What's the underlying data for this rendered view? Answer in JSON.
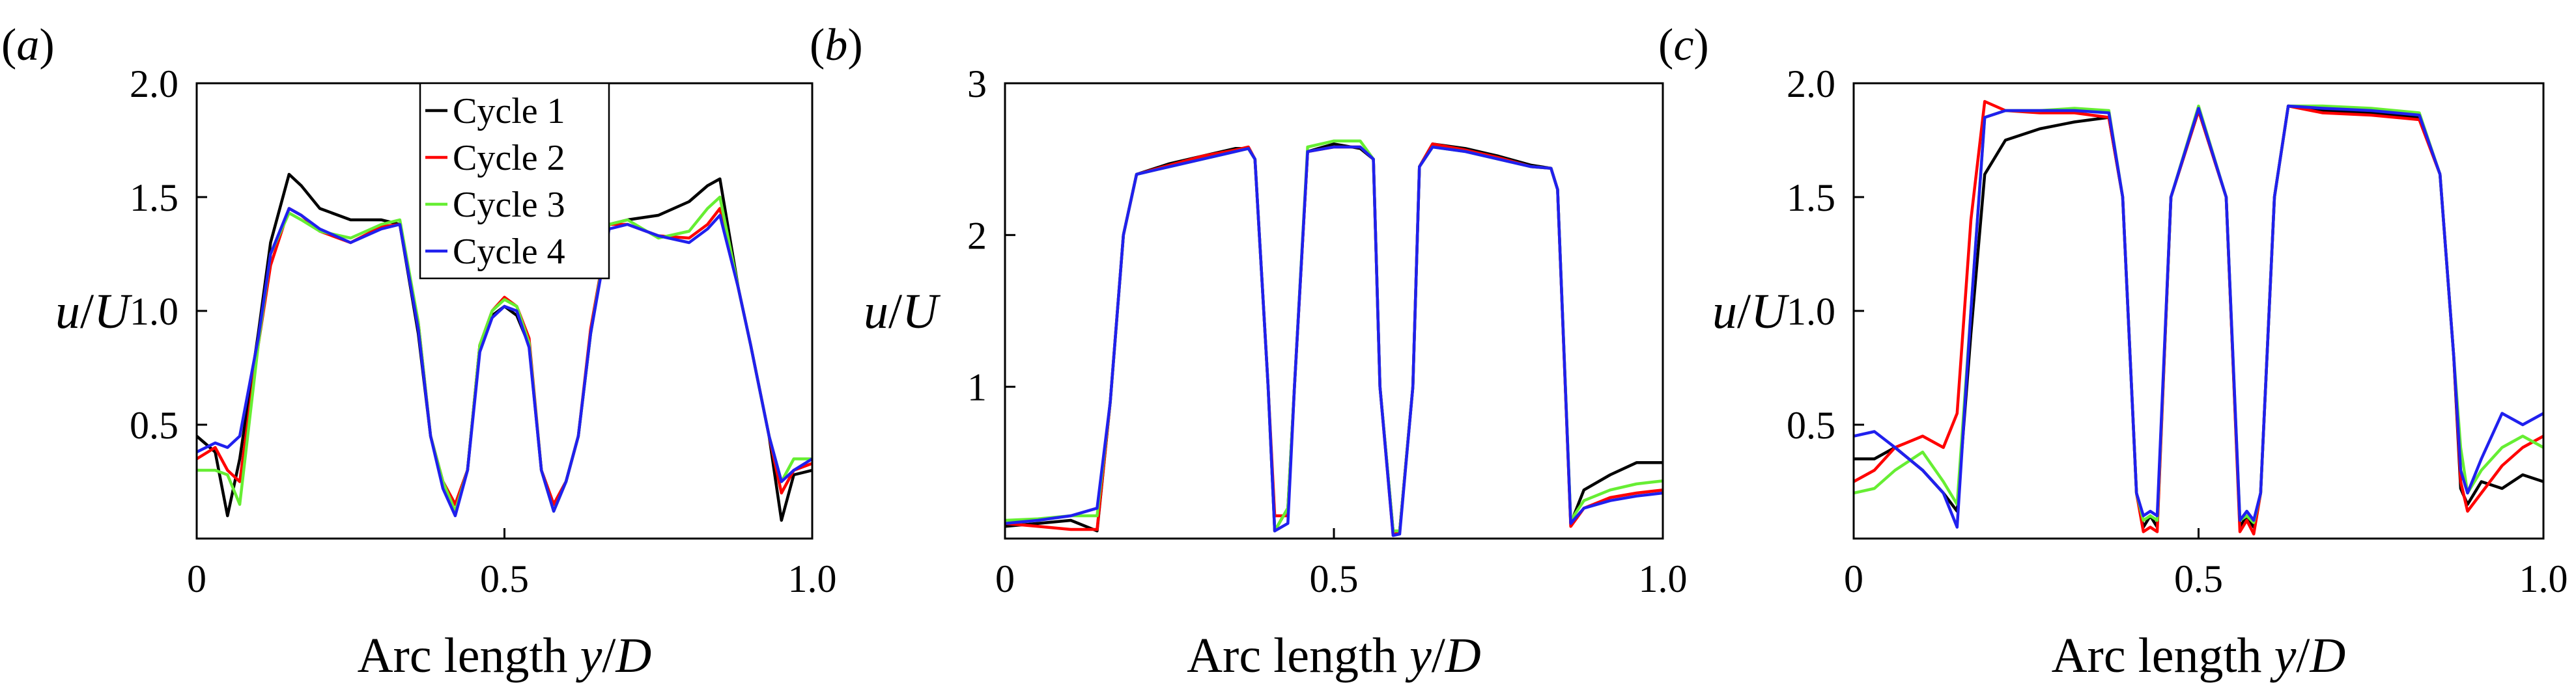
{
  "series_colors": [
    "#000000",
    "#ff0000",
    "#66ee33",
    "#2020ee"
  ],
  "chart_data": [
    {
      "type": "line",
      "panel_label": "(a)",
      "xlabel": "Arc length y/D",
      "ylabel": "u/U",
      "xlim": [
        0,
        1
      ],
      "ylim": [
        0,
        2.0
      ],
      "xticks": [
        0,
        0.5,
        1.0
      ],
      "xtick_labels": [
        "0",
        "0.5",
        "1.0"
      ],
      "yticks": [
        0.5,
        1.0,
        1.5,
        2.0
      ],
      "ytick_labels": [
        "0.5",
        "1.0",
        "1.5",
        "2.0"
      ],
      "legend": {
        "position": "top-center",
        "entries": [
          "Cycle 1",
          "Cycle 2",
          "Cycle 3",
          "Cycle 4"
        ]
      },
      "series": [
        {
          "name": "Cycle 1",
          "x": [
            0,
            0.03,
            0.05,
            0.07,
            0.1,
            0.12,
            0.15,
            0.17,
            0.2,
            0.25,
            0.3,
            0.33,
            0.36,
            0.38,
            0.4,
            0.42,
            0.44,
            0.46,
            0.48,
            0.5,
            0.52,
            0.54,
            0.56,
            0.58,
            0.6,
            0.62,
            0.64,
            0.67,
            0.7,
            0.75,
            0.8,
            0.83,
            0.85,
            0.88,
            0.9,
            0.93,
            0.95,
            0.97,
            1.0
          ],
          "y": [
            0.45,
            0.38,
            0.1,
            0.35,
            0.9,
            1.3,
            1.6,
            1.55,
            1.45,
            1.4,
            1.4,
            1.38,
            0.9,
            0.45,
            0.25,
            0.15,
            0.3,
            0.85,
            0.98,
            1.02,
            0.98,
            0.85,
            0.3,
            0.15,
            0.25,
            0.45,
            0.9,
            1.38,
            1.4,
            1.42,
            1.48,
            1.55,
            1.58,
            1.1,
            0.85,
            0.45,
            0.08,
            0.28,
            0.3
          ]
        },
        {
          "name": "Cycle 2",
          "x": [
            0,
            0.03,
            0.05,
            0.07,
            0.1,
            0.12,
            0.15,
            0.17,
            0.2,
            0.25,
            0.3,
            0.33,
            0.36,
            0.38,
            0.4,
            0.42,
            0.44,
            0.46,
            0.48,
            0.5,
            0.52,
            0.54,
            0.56,
            0.58,
            0.6,
            0.62,
            0.64,
            0.67,
            0.7,
            0.75,
            0.8,
            0.83,
            0.85,
            0.88,
            0.9,
            0.93,
            0.95,
            0.97,
            1.0
          ],
          "y": [
            0.35,
            0.4,
            0.3,
            0.25,
            0.85,
            1.2,
            1.45,
            1.42,
            1.35,
            1.3,
            1.37,
            1.38,
            0.95,
            0.45,
            0.25,
            0.15,
            0.3,
            0.85,
            1.0,
            1.06,
            1.02,
            0.88,
            0.3,
            0.15,
            0.25,
            0.45,
            0.92,
            1.38,
            1.38,
            1.33,
            1.32,
            1.38,
            1.45,
            1.1,
            0.85,
            0.45,
            0.2,
            0.3,
            0.33
          ]
        },
        {
          "name": "Cycle 3",
          "x": [
            0,
            0.03,
            0.05,
            0.07,
            0.1,
            0.12,
            0.15,
            0.17,
            0.2,
            0.25,
            0.3,
            0.33,
            0.36,
            0.38,
            0.4,
            0.42,
            0.44,
            0.46,
            0.48,
            0.5,
            0.52,
            0.54,
            0.56,
            0.58,
            0.6,
            0.62,
            0.64,
            0.67,
            0.7,
            0.75,
            0.8,
            0.83,
            0.85,
            0.88,
            0.9,
            0.93,
            0.95,
            0.97,
            1.0
          ],
          "y": [
            0.3,
            0.3,
            0.28,
            0.15,
            0.85,
            1.25,
            1.43,
            1.4,
            1.35,
            1.32,
            1.38,
            1.4,
            0.95,
            0.45,
            0.25,
            0.12,
            0.3,
            0.85,
            1.0,
            1.05,
            1.02,
            0.86,
            0.3,
            0.12,
            0.25,
            0.45,
            0.9,
            1.38,
            1.4,
            1.32,
            1.35,
            1.45,
            1.5,
            1.1,
            0.85,
            0.45,
            0.25,
            0.35,
            0.35
          ]
        },
        {
          "name": "Cycle 4",
          "x": [
            0,
            0.03,
            0.05,
            0.07,
            0.1,
            0.12,
            0.15,
            0.17,
            0.2,
            0.25,
            0.3,
            0.33,
            0.36,
            0.38,
            0.4,
            0.42,
            0.44,
            0.46,
            0.48,
            0.5,
            0.52,
            0.54,
            0.56,
            0.58,
            0.6,
            0.62,
            0.64,
            0.67,
            0.7,
            0.75,
            0.8,
            0.83,
            0.85,
            0.88,
            0.9,
            0.93,
            0.95,
            0.97,
            1.0
          ],
          "y": [
            0.38,
            0.42,
            0.4,
            0.45,
            0.88,
            1.25,
            1.45,
            1.42,
            1.36,
            1.3,
            1.36,
            1.38,
            0.92,
            0.45,
            0.22,
            0.1,
            0.3,
            0.82,
            0.97,
            1.02,
            1.0,
            0.84,
            0.3,
            0.12,
            0.25,
            0.45,
            0.9,
            1.36,
            1.38,
            1.33,
            1.3,
            1.36,
            1.42,
            1.1,
            0.85,
            0.45,
            0.25,
            0.3,
            0.35
          ]
        }
      ]
    },
    {
      "type": "line",
      "panel_label": "(b)",
      "xlabel": "Arc length y/D",
      "ylabel": "u/U",
      "xlim": [
        0,
        1
      ],
      "ylim": [
        0,
        3
      ],
      "xticks": [
        0,
        0.5,
        1.0
      ],
      "xtick_labels": [
        "0",
        "0.5",
        "1.0"
      ],
      "yticks": [
        1,
        2,
        3
      ],
      "ytick_labels": [
        "1",
        "2",
        "3"
      ],
      "series": [
        {
          "name": "Cycle 1",
          "x": [
            0,
            0.05,
            0.1,
            0.14,
            0.16,
            0.18,
            0.2,
            0.25,
            0.3,
            0.35,
            0.37,
            0.38,
            0.4,
            0.41,
            0.43,
            0.44,
            0.46,
            0.5,
            0.54,
            0.56,
            0.57,
            0.59,
            0.6,
            0.62,
            0.63,
            0.65,
            0.7,
            0.75,
            0.8,
            0.83,
            0.84,
            0.86,
            0.88,
            0.92,
            0.96,
            1.0
          ],
          "y": [
            0.08,
            0.1,
            0.12,
            0.05,
            0.9,
            2.0,
            2.4,
            2.47,
            2.52,
            2.57,
            2.57,
            2.5,
            1.0,
            0.05,
            0.2,
            1.0,
            2.55,
            2.6,
            2.57,
            2.5,
            1.0,
            0.05,
            0.05,
            1.0,
            2.45,
            2.6,
            2.57,
            2.52,
            2.46,
            2.44,
            2.3,
            0.1,
            0.32,
            0.42,
            0.5,
            0.5
          ]
        },
        {
          "name": "Cycle 2",
          "x": [
            0,
            0.05,
            0.1,
            0.14,
            0.16,
            0.18,
            0.2,
            0.25,
            0.3,
            0.35,
            0.37,
            0.38,
            0.4,
            0.41,
            0.43,
            0.44,
            0.46,
            0.5,
            0.54,
            0.56,
            0.57,
            0.59,
            0.6,
            0.62,
            0.63,
            0.65,
            0.7,
            0.75,
            0.8,
            0.83,
            0.84,
            0.86,
            0.88,
            0.92,
            0.96,
            1.0
          ],
          "y": [
            0.1,
            0.08,
            0.06,
            0.06,
            0.9,
            2.0,
            2.4,
            2.46,
            2.52,
            2.56,
            2.58,
            2.5,
            1.0,
            0.15,
            0.15,
            1.0,
            2.55,
            2.58,
            2.58,
            2.5,
            1.0,
            0.02,
            0.05,
            1.0,
            2.45,
            2.6,
            2.56,
            2.51,
            2.45,
            2.44,
            2.3,
            0.08,
            0.2,
            0.27,
            0.3,
            0.32
          ]
        },
        {
          "name": "Cycle 3",
          "x": [
            0,
            0.05,
            0.1,
            0.14,
            0.16,
            0.18,
            0.2,
            0.25,
            0.3,
            0.35,
            0.37,
            0.38,
            0.4,
            0.41,
            0.43,
            0.44,
            0.46,
            0.5,
            0.54,
            0.56,
            0.57,
            0.59,
            0.6,
            0.62,
            0.63,
            0.65,
            0.7,
            0.75,
            0.8,
            0.83,
            0.84,
            0.86,
            0.88,
            0.92,
            0.96,
            1.0
          ],
          "y": [
            0.12,
            0.13,
            0.15,
            0.15,
            0.9,
            2.0,
            2.4,
            2.45,
            2.5,
            2.55,
            2.57,
            2.5,
            1.0,
            0.05,
            0.2,
            1.0,
            2.58,
            2.62,
            2.62,
            2.5,
            1.0,
            0.05,
            0.05,
            1.0,
            2.45,
            2.58,
            2.55,
            2.5,
            2.45,
            2.44,
            2.3,
            0.12,
            0.25,
            0.32,
            0.36,
            0.38
          ]
        },
        {
          "name": "Cycle 4",
          "x": [
            0,
            0.05,
            0.1,
            0.14,
            0.16,
            0.18,
            0.2,
            0.25,
            0.3,
            0.35,
            0.37,
            0.38,
            0.4,
            0.41,
            0.43,
            0.44,
            0.46,
            0.5,
            0.54,
            0.56,
            0.57,
            0.59,
            0.6,
            0.62,
            0.63,
            0.65,
            0.7,
            0.75,
            0.8,
            0.83,
            0.84,
            0.86,
            0.88,
            0.92,
            0.96,
            1.0
          ],
          "y": [
            0.1,
            0.12,
            0.15,
            0.2,
            0.9,
            2.0,
            2.4,
            2.45,
            2.5,
            2.55,
            2.57,
            2.5,
            1.0,
            0.05,
            0.1,
            1.0,
            2.55,
            2.58,
            2.58,
            2.5,
            1.0,
            0.02,
            0.03,
            1.0,
            2.45,
            2.58,
            2.55,
            2.5,
            2.45,
            2.44,
            2.3,
            0.1,
            0.2,
            0.25,
            0.28,
            0.3
          ]
        }
      ]
    },
    {
      "type": "line",
      "panel_label": "(c)",
      "xlabel": "Arc length y/D",
      "ylabel": "u/U",
      "xlim": [
        0,
        1
      ],
      "ylim": [
        0,
        2.0
      ],
      "xticks": [
        0,
        0.5,
        1.0
      ],
      "xtick_labels": [
        "0",
        "0.5",
        "1.0"
      ],
      "yticks": [
        0.5,
        1.0,
        1.5,
        2.0
      ],
      "ytick_labels": [
        "0.5",
        "1.0",
        "1.5",
        "2.0"
      ],
      "series": [
        {
          "name": "Cycle 1",
          "x": [
            0,
            0.03,
            0.06,
            0.1,
            0.13,
            0.15,
            0.17,
            0.19,
            0.22,
            0.27,
            0.32,
            0.37,
            0.39,
            0.41,
            0.42,
            0.43,
            0.44,
            0.46,
            0.5,
            0.54,
            0.56,
            0.57,
            0.58,
            0.59,
            0.61,
            0.63,
            0.68,
            0.75,
            0.82,
            0.85,
            0.87,
            0.88,
            0.89,
            0.91,
            0.94,
            0.97,
            1.0
          ],
          "y": [
            0.35,
            0.35,
            0.4,
            0.3,
            0.2,
            0.12,
            0.9,
            1.6,
            1.75,
            1.8,
            1.83,
            1.85,
            1.5,
            0.2,
            0.05,
            0.1,
            0.05,
            1.5,
            1.88,
            1.5,
            0.05,
            0.1,
            0.05,
            0.2,
            1.5,
            1.9,
            1.88,
            1.87,
            1.85,
            1.6,
            0.8,
            0.22,
            0.15,
            0.25,
            0.22,
            0.28,
            0.25
          ]
        },
        {
          "name": "Cycle 2",
          "x": [
            0,
            0.03,
            0.06,
            0.1,
            0.13,
            0.15,
            0.17,
            0.19,
            0.22,
            0.27,
            0.32,
            0.37,
            0.39,
            0.41,
            0.42,
            0.43,
            0.44,
            0.46,
            0.5,
            0.54,
            0.56,
            0.57,
            0.58,
            0.59,
            0.61,
            0.63,
            0.68,
            0.75,
            0.82,
            0.85,
            0.87,
            0.88,
            0.89,
            0.91,
            0.94,
            0.97,
            1.0
          ],
          "y": [
            0.25,
            0.3,
            0.4,
            0.45,
            0.4,
            0.55,
            1.4,
            1.92,
            1.88,
            1.87,
            1.87,
            1.85,
            1.5,
            0.2,
            0.03,
            0.05,
            0.03,
            1.5,
            1.88,
            1.5,
            0.03,
            0.08,
            0.02,
            0.2,
            1.5,
            1.9,
            1.87,
            1.86,
            1.84,
            1.6,
            0.8,
            0.25,
            0.12,
            0.2,
            0.32,
            0.4,
            0.45
          ]
        },
        {
          "name": "Cycle 3",
          "x": [
            0,
            0.03,
            0.06,
            0.1,
            0.13,
            0.15,
            0.17,
            0.19,
            0.22,
            0.27,
            0.32,
            0.37,
            0.39,
            0.41,
            0.42,
            0.43,
            0.44,
            0.46,
            0.5,
            0.54,
            0.56,
            0.57,
            0.58,
            0.59,
            0.61,
            0.63,
            0.68,
            0.75,
            0.82,
            0.85,
            0.87,
            0.88,
            0.89,
            0.91,
            0.94,
            0.97,
            1.0
          ],
          "y": [
            0.2,
            0.22,
            0.3,
            0.38,
            0.25,
            0.15,
            1.0,
            1.85,
            1.88,
            1.88,
            1.89,
            1.88,
            1.5,
            0.2,
            0.08,
            0.1,
            0.08,
            1.5,
            1.9,
            1.5,
            0.08,
            0.1,
            0.07,
            0.2,
            1.5,
            1.9,
            1.9,
            1.89,
            1.87,
            1.6,
            0.8,
            0.4,
            0.2,
            0.3,
            0.4,
            0.45,
            0.4
          ]
        },
        {
          "name": "Cycle 4",
          "x": [
            0,
            0.03,
            0.06,
            0.1,
            0.13,
            0.15,
            0.17,
            0.19,
            0.22,
            0.27,
            0.32,
            0.37,
            0.39,
            0.41,
            0.42,
            0.43,
            0.44,
            0.46,
            0.5,
            0.54,
            0.56,
            0.57,
            0.58,
            0.59,
            0.61,
            0.63,
            0.68,
            0.75,
            0.82,
            0.85,
            0.87,
            0.88,
            0.89,
            0.91,
            0.94,
            0.97,
            1.0
          ],
          "y": [
            0.45,
            0.47,
            0.4,
            0.3,
            0.2,
            0.05,
            1.0,
            1.85,
            1.88,
            1.88,
            1.88,
            1.87,
            1.5,
            0.2,
            0.1,
            0.12,
            0.1,
            1.5,
            1.89,
            1.5,
            0.08,
            0.12,
            0.08,
            0.2,
            1.5,
            1.9,
            1.89,
            1.88,
            1.86,
            1.6,
            0.8,
            0.3,
            0.2,
            0.35,
            0.55,
            0.5,
            0.55
          ]
        }
      ]
    }
  ]
}
